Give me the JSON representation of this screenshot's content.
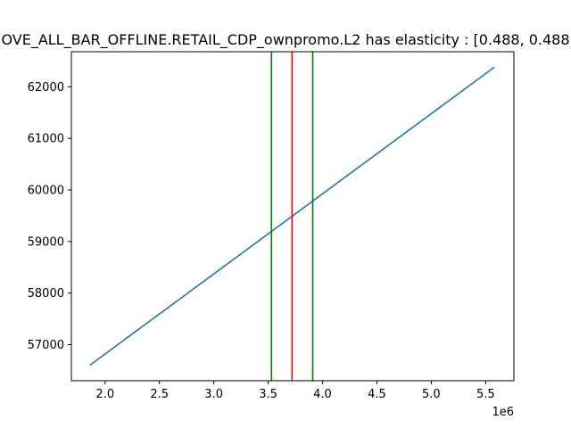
{
  "chart_data": {
    "type": "line",
    "title": "OVE_ALL_BAR_OFFLINE.RETAIL_CDP_ownpromo.L2 has elasticity : [0.488, 0.488",
    "xlabel": "",
    "ylabel": "",
    "x_offset_label": "1e6",
    "xlim": [
      1.69,
      5.76
    ],
    "ylim": [
      56300,
      62680
    ],
    "x_ticks": [
      2.0,
      2.5,
      3.0,
      3.5,
      4.0,
      4.5,
      5.0,
      5.5
    ],
    "x_tick_labels": [
      "2.0",
      "2.5",
      "3.0",
      "3.5",
      "4.0",
      "4.5",
      "5.0",
      "5.5"
    ],
    "y_ticks": [
      57000,
      58000,
      59000,
      60000,
      61000,
      62000
    ],
    "y_tick_labels": [
      "57000",
      "58000",
      "59000",
      "60000",
      "61000",
      "62000"
    ],
    "grid": false,
    "series": [
      {
        "color": "#1f77b4",
        "x": [
          1.86,
          5.58
        ],
        "y": [
          56600,
          62380
        ]
      }
    ],
    "vlines": [
      {
        "x": 3.53,
        "color": "#008000"
      },
      {
        "x": 3.72,
        "color": "#ff0000"
      },
      {
        "x": 3.91,
        "color": "#008000"
      }
    ]
  }
}
